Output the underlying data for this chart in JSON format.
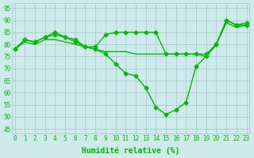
{
  "x": [
    0,
    1,
    2,
    3,
    4,
    5,
    6,
    7,
    8,
    9,
    10,
    11,
    12,
    13,
    14,
    15,
    16,
    17,
    18,
    19,
    20,
    21,
    22,
    23
  ],
  "line1": [
    78,
    82,
    81,
    83,
    85,
    83,
    82,
    79,
    79,
    84,
    85,
    85,
    85,
    85,
    85,
    76,
    76,
    76,
    76,
    76,
    80,
    90,
    88,
    88
  ],
  "line2": [
    78,
    82,
    81,
    83,
    84,
    83,
    81,
    79,
    78,
    76,
    72,
    68,
    67,
    62,
    54,
    51,
    53,
    56,
    71,
    75,
    80,
    90,
    88,
    89
  ],
  "line3": [
    78,
    81,
    80,
    82,
    82,
    81,
    80,
    79,
    78,
    77,
    77,
    77,
    76,
    76,
    76,
    76,
    76,
    76,
    76,
    75,
    80,
    89,
    87,
    88
  ],
  "bg_color": "#ceeaea",
  "grid_color": "#aacccc",
  "line_color": "#00bb00",
  "ylabel_ticks": [
    45,
    50,
    55,
    60,
    65,
    70,
    75,
    80,
    85,
    90,
    95
  ],
  "xlabel": "Humidité relative (%)",
  "ylim": [
    43,
    97
  ],
  "xlim": [
    -0.3,
    23.3
  ],
  "markersize": 2.5,
  "linewidth": 1.0,
  "tick_fontsize": 5.5,
  "xlabel_fontsize": 7.0
}
